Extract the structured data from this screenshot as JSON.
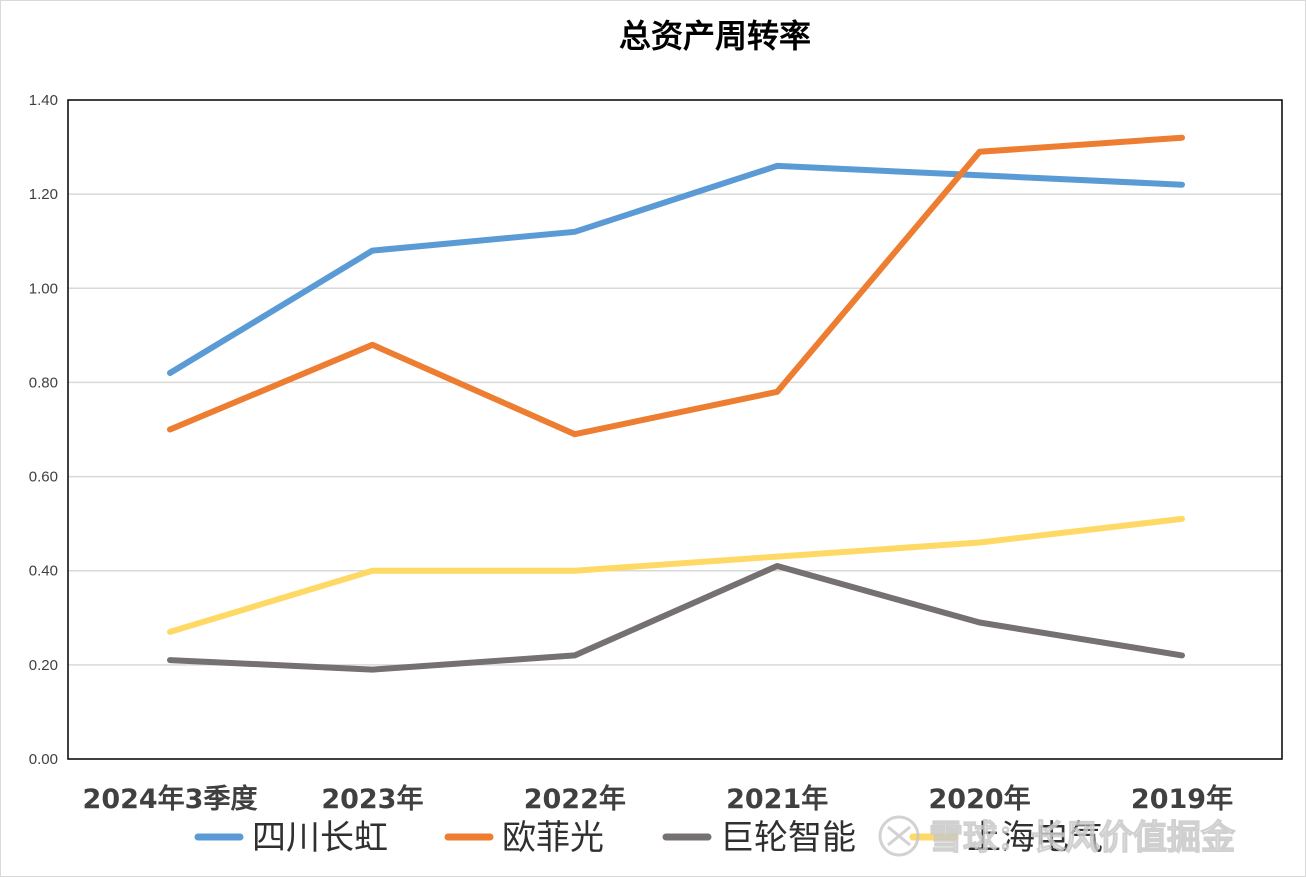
{
  "chart_data": {
    "type": "line",
    "title": "总资产周转率",
    "xlabel": "",
    "ylabel": "",
    "categories": [
      "2024年3季度",
      "2023年",
      "2022年",
      "2021年",
      "2020年",
      "2019年"
    ],
    "y_ticks": [
      "0.00",
      "0.20",
      "0.40",
      "0.60",
      "0.80",
      "1.00",
      "1.20",
      "1.40"
    ],
    "ylim": [
      0,
      1.4
    ],
    "grid": true,
    "legend_position": "bottom",
    "series": [
      {
        "name": "四川长虹",
        "color": "#5b9bd5",
        "values": [
          0.82,
          1.08,
          1.12,
          1.26,
          1.24,
          1.22
        ]
      },
      {
        "name": "欧菲光",
        "color": "#ed7d31",
        "values": [
          0.7,
          0.88,
          0.69,
          0.78,
          1.29,
          1.32
        ]
      },
      {
        "name": "巨轮智能",
        "color": "#767171",
        "values": [
          0.21,
          0.19,
          0.22,
          0.41,
          0.29,
          0.22
        ]
      },
      {
        "name": "上海电气",
        "color": "#ffd966",
        "values": [
          0.27,
          0.4,
          0.4,
          0.43,
          0.46,
          0.51
        ]
      }
    ]
  },
  "watermark": {
    "text": "雪球：长风价值掘金",
    "icon": "snowball-logo-icon"
  }
}
